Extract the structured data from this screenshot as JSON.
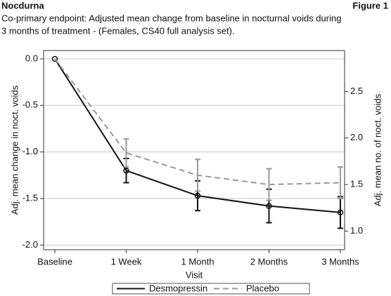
{
  "header": {
    "title": "Nocdurna",
    "figure": "Figure 1",
    "caption": [
      "Co-primary endpoint: Adjusted mean change from baseline in nocturnal voids during",
      "3 months of treatment - (Females, CS40 full analysis set)."
    ]
  },
  "chart_data": {
    "type": "line",
    "x_label": "Visit",
    "y_label": "Adj. mean change in noct. voids",
    "y2_label": "Adj. mean no. of noct. voids",
    "categories": [
      "Baseline",
      "1 Week",
      "1 Month",
      "2 Months",
      "3 Months"
    ],
    "series": [
      {
        "name": "Desmopressin",
        "color": "#111111",
        "dashed": false,
        "markers": true,
        "values": [
          0,
          -1.2,
          -1.47,
          -1.58,
          -1.65
        ],
        "errors": [
          null,
          0.13,
          0.16,
          0.18,
          0.17
        ]
      },
      {
        "name": "Placebo",
        "color": "#999999",
        "dashed": true,
        "markers": false,
        "values": [
          0,
          -1.01,
          -1.25,
          -1.35,
          -1.33
        ],
        "errors": [
          null,
          0.15,
          0.17,
          0.17,
          0.17
        ]
      }
    ],
    "ylim": [
      -2.05,
      0.09
    ],
    "yticks": [
      {
        "value": 0,
        "label": "0.0"
      },
      {
        "value": -0.5,
        "label": "-0.5"
      },
      {
        "value": -1,
        "label": "-1.0"
      },
      {
        "value": -1.5,
        "label": "-1.5"
      },
      {
        "value": -2,
        "label": "-2.0"
      }
    ],
    "y2lim": [
      0.8,
      2.94
    ],
    "y2ticks": [
      {
        "value": 1,
        "label": "1.0"
      },
      {
        "value": 1.5,
        "label": "1.5"
      },
      {
        "value": 2,
        "label": "2.0"
      },
      {
        "value": 2.5,
        "label": "2.5"
      }
    ],
    "grid": true,
    "legend": "bottom"
  }
}
